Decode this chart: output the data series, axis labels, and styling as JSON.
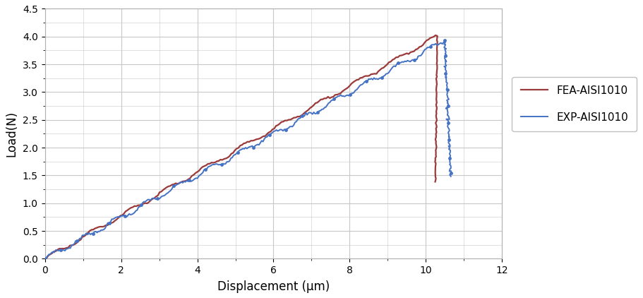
{
  "title": "",
  "xlabel": "Displacement (μm)",
  "ylabel": "Load(N)",
  "xlim": [
    0,
    12
  ],
  "ylim": [
    0,
    4.5
  ],
  "xticks": [
    0,
    2,
    4,
    6,
    8,
    10,
    12
  ],
  "yticks": [
    0,
    0.5,
    1.0,
    1.5,
    2.0,
    2.5,
    3.0,
    3.5,
    4.0,
    4.5
  ],
  "exp_color": "#4472C4",
  "fea_color": "#9B3A3A",
  "exp_label": "EXP-AISI1010",
  "fea_label": "FEA-AISI1010",
  "background_color": "#ffffff",
  "grid_color": "#c8c8c8",
  "load_peak_x": 10.5,
  "load_peak_y_exp": 3.93,
  "load_peak_y_fea": 4.01,
  "unload_end_x_exp": 10.65,
  "unload_end_y_exp": 1.47,
  "unload_end_x_fea": 10.25,
  "unload_end_y_fea": 1.38,
  "n_load_exp": 300,
  "n_load_fea": 220,
  "n_unload_exp": 100,
  "n_unload_fea": 80
}
